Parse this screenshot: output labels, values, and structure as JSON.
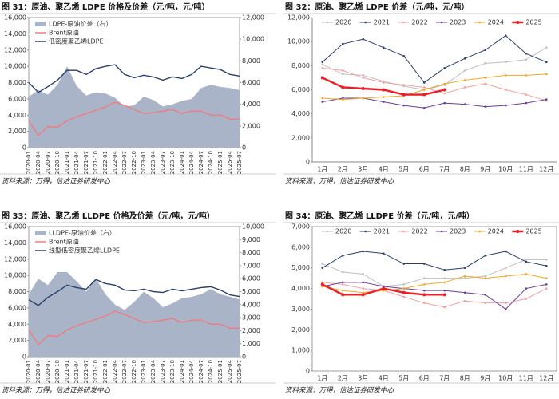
{
  "chart_data": [
    {
      "type": "combo",
      "title": "图 31：原油、聚乙烯 LDPE 价格及价差（元/吨，元/吨）",
      "source": "资料来源：万得，信达证券研发中心",
      "categories": [
        "2020-01",
        "2020-04",
        "2020-07",
        "2020-10",
        "2021-01",
        "2021-04",
        "2021-07",
        "2021-10",
        "2022-01",
        "2022-04",
        "2022-07",
        "2022-10",
        "2023-01",
        "2023-04",
        "2023-07",
        "2023-10",
        "2024-01",
        "2024-04",
        "2024-07",
        "2024-10",
        "2025-01",
        "2025-04",
        "2025-07"
      ],
      "ylim": [
        0,
        16000
      ],
      "yticks": [
        0,
        {
          "value": 2000,
          "label": "2,000"
        },
        {
          "value": 4000,
          "label": "4,000"
        },
        {
          "value": 6000,
          "label": "6,000"
        },
        {
          "value": 8000,
          "label": "8,000"
        },
        {
          "value": 10000,
          "label": "10,000"
        },
        {
          "value": 12000,
          "label": "12,000"
        },
        {
          "value": 14000,
          "label": "14,000"
        },
        {
          "value": 16000,
          "label": "16,000"
        }
      ],
      "y2lim": [
        0,
        12000
      ],
      "y2ticks": [
        0,
        {
          "value": 2000,
          "label": "2,000"
        },
        {
          "value": 4000,
          "label": "4,000"
        },
        {
          "value": 6000,
          "label": "6,000"
        },
        {
          "value": 8000,
          "label": "8,000"
        },
        {
          "value": 10000,
          "label": "10,000"
        },
        {
          "value": 12000,
          "label": "12,000"
        }
      ],
      "series": [
        {
          "name": "LDPE-原油价差（右）",
          "color": "#a9b4c8",
          "kind": "area",
          "axis": "y2",
          "values": [
            4700,
            5300,
            4900,
            5800,
            7500,
            5700,
            4800,
            5100,
            5000,
            4600,
            3800,
            3900,
            4700,
            4400,
            3800,
            4000,
            4300,
            4500,
            5500,
            5800,
            5600,
            5500,
            5300
          ]
        },
        {
          "name": "Brent原油",
          "color": "#f27b7b",
          "kind": "line",
          "values": [
            3300,
            1500,
            2600,
            2500,
            3300,
            3800,
            4200,
            4600,
            5000,
            5600,
            5200,
            4700,
            4200,
            4300,
            4500,
            4700,
            4200,
            4500,
            4500,
            4000,
            4000,
            3500,
            3500
          ]
        },
        {
          "name": "低密度聚乙烯LDPE",
          "color": "#2a3f6e",
          "kind": "line",
          "values": [
            8000,
            6800,
            7500,
            8300,
            9500,
            9500,
            9000,
            9700,
            10000,
            10200,
            9000,
            8600,
            8900,
            8700,
            8300,
            8700,
            8500,
            9000,
            10000,
            9800,
            9600,
            9000,
            8800
          ]
        }
      ]
    },
    {
      "type": "line",
      "title": "图 32：原油、聚乙烯 LDPE 价差（元/吨，元/吨）",
      "source": "资料来源：万得，信达证券研发中心",
      "categories": [
        "1月",
        "2月",
        "3月",
        "4月",
        "5月",
        "6月",
        "7月",
        "8月",
        "9月",
        "10月",
        "11月",
        "12月"
      ],
      "ylim": [
        0,
        12000
      ],
      "yticks": [
        0,
        {
          "value": 2000,
          "label": "2,000"
        },
        {
          "value": 4000,
          "label": "4,000"
        },
        {
          "value": 6000,
          "label": "6,000"
        },
        {
          "value": 8000,
          "label": "8,000"
        },
        {
          "value": 10000,
          "label": "10,000"
        },
        {
          "value": 12000,
          "label": "12,000"
        }
      ],
      "series": [
        {
          "name": "2020",
          "color": "#bfbfbf",
          "values": [
            8100,
            7300,
            7200,
            6700,
            6300,
            6000,
            6400,
            7600,
            8200,
            8300,
            8500,
            9500
          ]
        },
        {
          "name": "2021",
          "color": "#2a3f6e",
          "values": [
            8300,
            9800,
            10200,
            9500,
            8800,
            6600,
            7800,
            8600,
            9300,
            10500,
            9000,
            8300
          ]
        },
        {
          "name": "2022",
          "color": "#f4a0a0",
          "values": [
            7800,
            7600,
            7000,
            6600,
            6400,
            6200,
            5700,
            6200,
            6500,
            6000,
            5600,
            5100
          ]
        },
        {
          "name": "2023",
          "color": "#6a3d9a",
          "values": [
            5000,
            5300,
            5300,
            5000,
            4700,
            4500,
            4900,
            4800,
            4600,
            4700,
            4900,
            5200
          ]
        },
        {
          "name": "2024",
          "color": "#f5a623",
          "values": [
            5300,
            5200,
            5300,
            5400,
            5500,
            6000,
            6500,
            6800,
            7000,
            7200,
            7200,
            7300
          ]
        },
        {
          "name": "2025",
          "color": "#ee1c25",
          "values": [
            7000,
            6200,
            6100,
            6000,
            5600,
            5600,
            6000,
            null,
            null,
            null,
            null,
            null
          ]
        }
      ]
    },
    {
      "type": "combo",
      "title": "图 33：原油、聚乙烯 LLDPE 价格及价差（元/吨，元/吨）",
      "source": "资料来源：万得，信达证券研发中心",
      "categories": [
        "2020-01",
        "2020-04",
        "2020-07",
        "2020-10",
        "2021-01",
        "2021-04",
        "2021-07",
        "2021-10",
        "2022-01",
        "2022-04",
        "2022-07",
        "2022-10",
        "2023-01",
        "2023-04",
        "2023-07",
        "2023-10",
        "2024-01",
        "2024-04",
        "2024-07",
        "2024-10",
        "2025-01",
        "2025-04",
        "2025-07"
      ],
      "ylim": [
        0,
        16000
      ],
      "yticks": [
        0,
        {
          "value": 2000,
          "label": "2,000"
        },
        {
          "value": 4000,
          "label": "4,000"
        },
        {
          "value": 6000,
          "label": "6,000"
        },
        {
          "value": 8000,
          "label": "8,000"
        },
        {
          "value": 10000,
          "label": "10,000"
        },
        {
          "value": 12000,
          "label": "12,000"
        },
        {
          "value": 14000,
          "label": "14,000"
        },
        {
          "value": 16000,
          "label": "16,000"
        }
      ],
      "y2lim": [
        0,
        10000
      ],
      "y2ticks": [
        0,
        {
          "value": 1000,
          "label": "1,000"
        },
        {
          "value": 2000,
          "label": "2,000"
        },
        {
          "value": 3000,
          "label": "3,000"
        },
        {
          "value": 4000,
          "label": "4,000"
        },
        {
          "value": 5000,
          "label": "5,000"
        },
        {
          "value": 6000,
          "label": "6,000"
        },
        {
          "value": 7000,
          "label": "7,000"
        },
        {
          "value": 8000,
          "label": "8,000"
        },
        {
          "value": 9000,
          "label": "9,000"
        },
        {
          "value": 10000,
          "label": "10,000"
        }
      ],
      "series": [
        {
          "name": "LLDPE-原油价差（右）",
          "color": "#a9b4c8",
          "kind": "area",
          "axis": "y2",
          "values": [
            4800,
            6000,
            5500,
            6500,
            6500,
            5800,
            5000,
            6000,
            4800,
            4000,
            3600,
            4200,
            5000,
            4500,
            3800,
            4100,
            4500,
            4600,
            4800,
            5200,
            4800,
            4600,
            4400
          ]
        },
        {
          "name": "Brent原油",
          "color": "#f27b7b",
          "kind": "line",
          "values": [
            3300,
            1500,
            2600,
            2500,
            3300,
            3800,
            4200,
            4600,
            5000,
            5600,
            5200,
            4700,
            4200,
            4300,
            4500,
            4700,
            4200,
            4500,
            4500,
            4000,
            4000,
            3500,
            3500
          ]
        },
        {
          "name": "线型低密度聚乙烯LLDPE",
          "color": "#2a3f6e",
          "kind": "line",
          "values": [
            7000,
            6300,
            7300,
            8000,
            8800,
            8500,
            8300,
            9500,
            9000,
            8800,
            8200,
            8100,
            8300,
            8000,
            7900,
            8300,
            8100,
            8300,
            8500,
            8600,
            8200,
            7600,
            7400
          ]
        }
      ]
    },
    {
      "type": "line",
      "title": "图 34：原油、聚乙烯 LLDPE 价差（元/吨，元/吨）",
      "source": "资料来源：万得，信达证券研发中心",
      "frame": true,
      "categories": [
        "1月",
        "2月",
        "3月",
        "4月",
        "5月",
        "6月",
        "7月",
        "8月",
        "9月",
        "10月",
        "11月",
        "12月"
      ],
      "ylim": [
        0,
        7000
      ],
      "yticks": [
        0,
        {
          "value": 1000,
          "label": "1,000"
        },
        {
          "value": 2000,
          "label": "2,000"
        },
        {
          "value": 3000,
          "label": "3,000"
        },
        {
          "value": 4000,
          "label": "4,000"
        },
        {
          "value": 5000,
          "label": "5,000"
        },
        {
          "value": 6000,
          "label": "6,000"
        },
        {
          "value": 7000,
          "label": "7,000"
        }
      ],
      "series": [
        {
          "name": "2020",
          "color": "#bfbfbf",
          "values": [
            5200,
            4800,
            4700,
            4100,
            4200,
            4500,
            4500,
            4500,
            4600,
            5000,
            5400,
            5400
          ]
        },
        {
          "name": "2021",
          "color": "#2a3f6e",
          "values": [
            5000,
            5600,
            5800,
            5700,
            5200,
            5200,
            4900,
            5000,
            5600,
            5800,
            5300,
            5100
          ]
        },
        {
          "name": "2022",
          "color": "#f4a0a0",
          "values": [
            4300,
            4200,
            4000,
            3900,
            3600,
            3300,
            3100,
            3400,
            3300,
            3300,
            3500,
            4000
          ]
        },
        {
          "name": "2023",
          "color": "#6a3d9a",
          "values": [
            4100,
            4300,
            4300,
            4100,
            4000,
            3900,
            3900,
            3800,
            3700,
            3000,
            4000,
            4200
          ]
        },
        {
          "name": "2024",
          "color": "#f5a623",
          "values": [
            4100,
            3900,
            3800,
            3900,
            4000,
            4200,
            4300,
            4600,
            4500,
            4600,
            4700,
            4500
          ]
        },
        {
          "name": "2025",
          "color": "#ee1c25",
          "values": [
            4200,
            3700,
            3700,
            4000,
            3800,
            3700,
            3700,
            null,
            null,
            null,
            null,
            null
          ]
        }
      ]
    }
  ]
}
